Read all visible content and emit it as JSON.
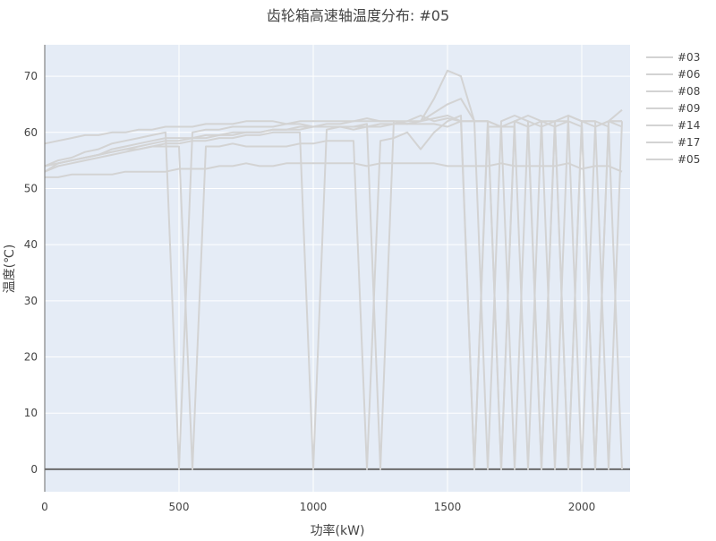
{
  "chart_data": {
    "type": "line",
    "title": "齿轮箱高速轴温度分布: #05",
    "xlabel": "功率(kW)",
    "ylabel": "温度(℃)",
    "xlim": [
      0,
      2180
    ],
    "ylim": [
      -4,
      75.6
    ],
    "xticks": [
      0,
      500,
      1000,
      1500,
      2000
    ],
    "yticks": [
      0,
      10,
      20,
      30,
      40,
      50,
      60,
      70
    ],
    "grid": true,
    "legend_position": "right",
    "colors": {
      "line": "#d3d3d3",
      "plot_bg": "#e5ecf6",
      "grid": "#ffffff",
      "zeroline": "#6b6b6b"
    },
    "x": [
      0,
      50,
      100,
      150,
      200,
      250,
      300,
      350,
      400,
      450,
      500,
      550,
      600,
      650,
      700,
      750,
      800,
      850,
      900,
      950,
      1000,
      1050,
      1100,
      1150,
      1200,
      1250,
      1300,
      1350,
      1400,
      1450,
      1500,
      1550,
      1600,
      1650,
      1700,
      1750,
      1800,
      1850,
      1900,
      1950,
      2000,
      2050,
      2100,
      2150
    ],
    "series": [
      {
        "name": "#03",
        "values": [
          58,
          58.5,
          59,
          59.5,
          59.5,
          60,
          60,
          60.5,
          60.5,
          61,
          61,
          61,
          61.5,
          61.5,
          61.5,
          62,
          62,
          62,
          61.5,
          62,
          62,
          62,
          62,
          62,
          62.5,
          62,
          62,
          62,
          63,
          62,
          62.5,
          62,
          62,
          0,
          62,
          63,
          62,
          0,
          62,
          63,
          62,
          61,
          62,
          62
        ]
      },
      {
        "name": "#06",
        "values": [
          54,
          55,
          55.5,
          56.5,
          57,
          58,
          58.5,
          59,
          59.5,
          60,
          0,
          60,
          60.5,
          60.5,
          61,
          61,
          61,
          61,
          61.5,
          61.5,
          61,
          61.5,
          61.5,
          62,
          62,
          62,
          62,
          61.5,
          62,
          63.5,
          65,
          66,
          62,
          62,
          0,
          62,
          63,
          62,
          0,
          63,
          62,
          0,
          62,
          64
        ]
      },
      {
        "name": "#08",
        "values": [
          53,
          54,
          54.5,
          55,
          55.5,
          56,
          56.5,
          57,
          57.5,
          58,
          58,
          58.5,
          58.5,
          59,
          59,
          59.5,
          59.5,
          60,
          60,
          60,
          0,
          60.5,
          61,
          61,
          61,
          61.5,
          61.5,
          62,
          62,
          66,
          71,
          70,
          62,
          62,
          61,
          0,
          62,
          61,
          62,
          0,
          62,
          62,
          0,
          62
        ]
      },
      {
        "name": "#09",
        "values": [
          54,
          54.5,
          55,
          55.5,
          56,
          56.5,
          57,
          57,
          57.5,
          57.5,
          57.5,
          0,
          57.5,
          57.5,
          58,
          57.5,
          57.5,
          57.5,
          57.5,
          58,
          58,
          58.5,
          58.5,
          58.5,
          0,
          58.5,
          59,
          60,
          57,
          60,
          62,
          63,
          0,
          61,
          61,
          61,
          0,
          62,
          61,
          62,
          0,
          61,
          62,
          61
        ]
      },
      {
        "name": "#14",
        "values": [
          52,
          52,
          52.5,
          52.5,
          52.5,
          52.5,
          53,
          53,
          53,
          53,
          53.5,
          53.5,
          53.5,
          54,
          54,
          54.5,
          54,
          54,
          54.5,
          54.5,
          54.5,
          54.5,
          54.5,
          54.5,
          54,
          54.5,
          54.5,
          54.5,
          54.5,
          54.5,
          54,
          54,
          54,
          54,
          54.5,
          54,
          54,
          54,
          54,
          54.5,
          53.5,
          54,
          54,
          53
        ]
      },
      {
        "name": "#17",
        "values": [
          53,
          54.5,
          55,
          55.5,
          56,
          57,
          57.5,
          58,
          58.5,
          59,
          59,
          59,
          59.5,
          59.5,
          60,
          60,
          60,
          60.5,
          60.5,
          61,
          61,
          61,
          61,
          61,
          61.5,
          0,
          62,
          61.5,
          62,
          62.5,
          63,
          62,
          62,
          62,
          0,
          62,
          61,
          62,
          62,
          0,
          62,
          62,
          61,
          0
        ]
      },
      {
        "name": "#05",
        "values": [
          54,
          54.5,
          55,
          55.5,
          56,
          56.5,
          57,
          57.5,
          58,
          58.5,
          58.5,
          59,
          59,
          59.5,
          59.5,
          60,
          60,
          60.5,
          60.5,
          60.5,
          61,
          61,
          61,
          60.5,
          61,
          61,
          61.5,
          61.5,
          61.5,
          61.5,
          61,
          62,
          0,
          62,
          61,
          62,
          61,
          0,
          62,
          62,
          61,
          0,
          62,
          62
        ]
      }
    ]
  }
}
